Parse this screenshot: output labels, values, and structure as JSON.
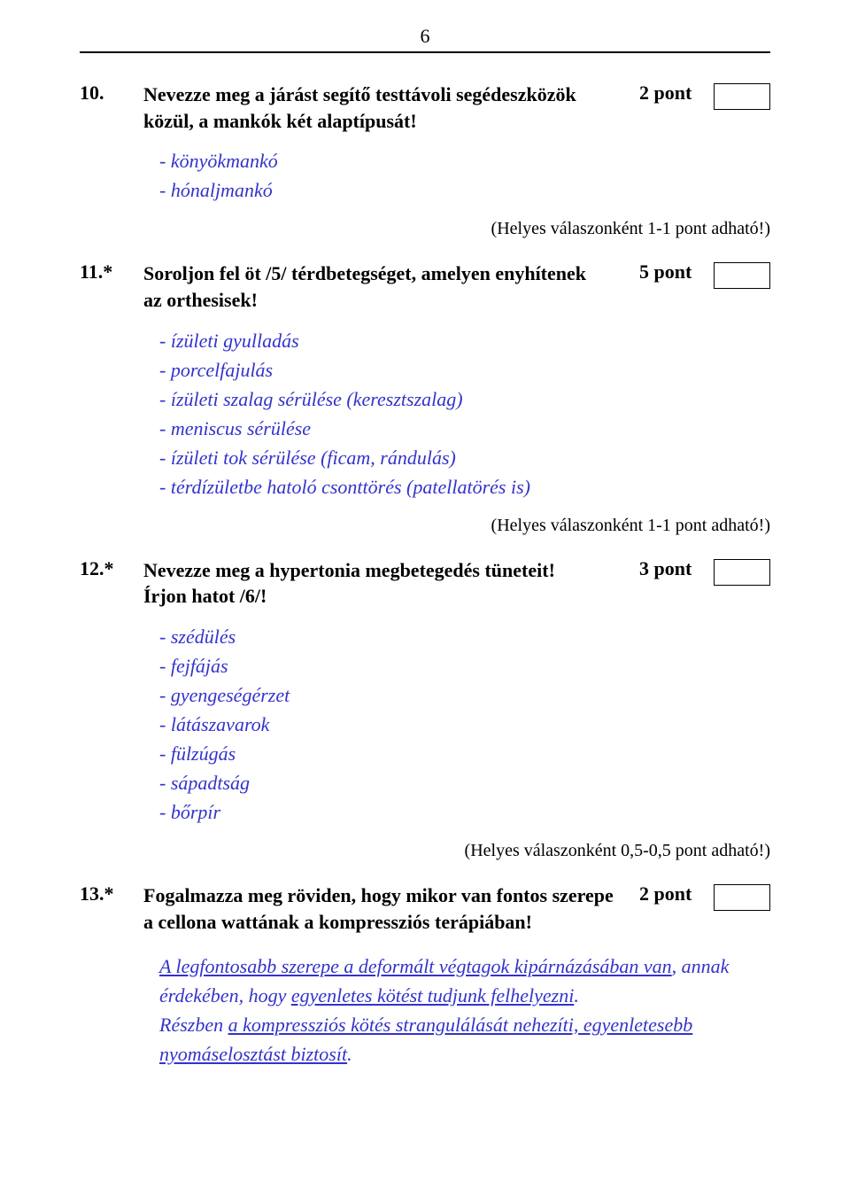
{
  "page_number": "6",
  "colors": {
    "text": "#000000",
    "answer": "#3333cc",
    "background": "#ffffff",
    "rule": "#000000"
  },
  "fonts": {
    "body_family": "Times New Roman",
    "body_size_pt": 16,
    "answer_style": "italic"
  },
  "q10": {
    "num": "10.",
    "text_line1": "Nevezze meg a járást segítő testtávoli segédeszközök",
    "text_line2": "közül, a mankók két alaptípusát!",
    "points": "2 pont",
    "answers": [
      "- könyökmankó",
      "- hónaljmankó"
    ],
    "scoring": "(Helyes válaszonként 1-1 pont adható!)"
  },
  "q11": {
    "num": "11.*",
    "text_line1": "Soroljon fel öt /5/ térdbetegséget, amelyen enyhítenek",
    "text_line2": "az orthesisek!",
    "points": "5 pont",
    "answers": [
      "- ízületi gyulladás",
      "- porcelfajulás",
      "- ízületi szalag sérülése (keresztszalag)",
      "- meniscus sérülése",
      "- ízületi tok sérülése (ficam, rándulás)",
      "- térdízületbe hatoló csonttörés (patellatörés is)"
    ],
    "scoring": "(Helyes válaszonként 1-1 pont adható!)"
  },
  "q12": {
    "num": "12.*",
    "text_line1": "Nevezze meg a hypertonia megbetegedés tüneteit!",
    "text_line2": "Írjon hatot /6/!",
    "points": "3 pont",
    "answers": [
      "- szédülés",
      "- fejfájás",
      "- gyengeségérzet",
      "- látászavarok",
      "- fülzúgás",
      "- sápadtság",
      "- bőrpír"
    ],
    "scoring": "(Helyes válaszonként 0,5-0,5 pont adható!)"
  },
  "q13": {
    "num": "13.*",
    "text_line1": "Fogalmazza meg röviden, hogy mikor van fontos szerepe",
    "text_line2": "a cellona wattának a kompressziós terápiában!",
    "points": "2 pont",
    "para": {
      "p1_a": "A legfontosabb szerepe a deformált végtagok kipárnázásában van",
      "p1_b": ", annak érdekében, hogy ",
      "p1_c": "egyenletes kötést tudjunk felhelyezni",
      "p1_d": ".",
      "p2_a": "Részben ",
      "p2_b": "a kompressziós kötés strangulálását nehezíti, egyenletesebb nyomáselosztást biztosít",
      "p2_c": "."
    }
  }
}
